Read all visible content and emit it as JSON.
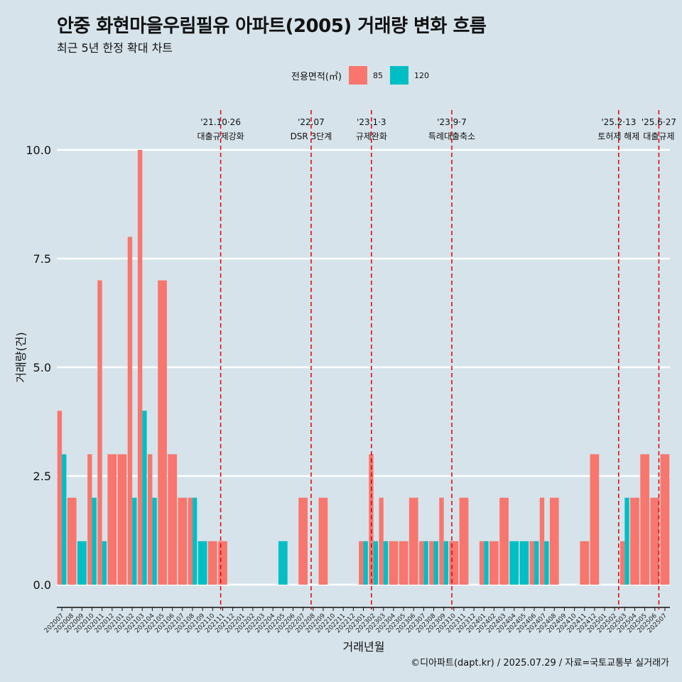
{
  "title": "안중 화현마을우림필유 아파트(2005) 거래량 변화 흐름",
  "subtitle": "최근 5년 한정 확대 차트",
  "legend": {
    "title": "전용면적(㎡)",
    "items": [
      {
        "label": "85",
        "color": "#f8766d"
      },
      {
        "label": "120",
        "color": "#00bfc4"
      }
    ]
  },
  "caption": "©디아파트(dapt.kr) / 2025.07.29 / 자료=국토교통부 실거래가",
  "chart_data": {
    "type": "bar",
    "xlabel": "거래년월",
    "ylabel": "거래량(건)",
    "ylim": [
      0,
      10
    ],
    "yticks": [
      "0.0",
      "2.5",
      "5.0",
      "7.5",
      "10.0"
    ],
    "grid": true,
    "legend_position": "top",
    "categories": [
      "202007",
      "202008",
      "202009",
      "202010",
      "202011",
      "202012",
      "202101",
      "202102",
      "202103",
      "202104",
      "202105",
      "202106",
      "202107",
      "202108",
      "202109",
      "202110",
      "202111",
      "202112",
      "202201",
      "202202",
      "202203",
      "202204",
      "202205",
      "202206",
      "202207",
      "202208",
      "202209",
      "202210",
      "202211",
      "202212",
      "202301",
      "202302",
      "202303",
      "202304",
      "202305",
      "202306",
      "202307",
      "202308",
      "202309",
      "202310",
      "202311",
      "202312",
      "202401",
      "202402",
      "202403",
      "202404",
      "202405",
      "202406",
      "202407",
      "202408",
      "202409",
      "202410",
      "202411",
      "202412",
      "202501",
      "202502",
      "202503",
      "202504",
      "202505",
      "202506",
      "202507"
    ],
    "series": [
      {
        "name": "85",
        "color": "#f8766d",
        "values": [
          4,
          2,
          0,
          3,
          7,
          3,
          3,
          8,
          10,
          3,
          7,
          3,
          2,
          2,
          0,
          1,
          1,
          0,
          0,
          0,
          0,
          0,
          0,
          0,
          2,
          0,
          2,
          0,
          0,
          0,
          1,
          3,
          2,
          1,
          1,
          2,
          1,
          1,
          2,
          1,
          2,
          0,
          1,
          1,
          2,
          0,
          0,
          1,
          2,
          2,
          0,
          0,
          1,
          3,
          0,
          0,
          1,
          2,
          3,
          2,
          3
        ]
      },
      {
        "name": "120",
        "color": "#00bfc4",
        "values": [
          3,
          0,
          1,
          2,
          1,
          0,
          0,
          2,
          4,
          2,
          0,
          0,
          0,
          2,
          1,
          0,
          0,
          0,
          0,
          0,
          0,
          0,
          1,
          0,
          0,
          0,
          0,
          0,
          0,
          0,
          1,
          1,
          1,
          0,
          0,
          0,
          1,
          1,
          1,
          0,
          0,
          0,
          1,
          0,
          0,
          1,
          1,
          1,
          1,
          0,
          0,
          0,
          0,
          0,
          0,
          0,
          2,
          0,
          0,
          0,
          0
        ]
      }
    ],
    "annotations": [
      {
        "date": "'21.10·26",
        "label": "대출규제강화",
        "index": 15.8
      },
      {
        "date": "'22.07",
        "label": "DSR 3단계",
        "index": 24.8
      },
      {
        "date": "'23.1·3",
        "label": "규제완화",
        "index": 30.8
      },
      {
        "date": "'23.9·7",
        "label": "특례대출축소",
        "index": 38.8
      },
      {
        "date": "'25.2·13",
        "label": "토허제 해제",
        "index": 55.4
      },
      {
        "date": "'25.6·27",
        "label": "대출규제",
        "index": 59.4
      }
    ]
  }
}
